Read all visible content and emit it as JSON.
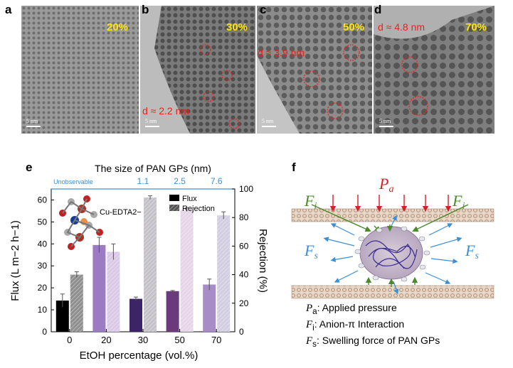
{
  "panels": {
    "a": {
      "letter": "a",
      "percent": "20%"
    },
    "b": {
      "letter": "b",
      "percent": "30%",
      "d_label": "d ≈ 2.2 nm"
    },
    "c": {
      "letter": "c",
      "percent": "50%",
      "d_label": "d ≈ 3.9 nm"
    },
    "d": {
      "letter": "d",
      "percent": "70%",
      "d_label": "d ≈ 4.8 nm"
    },
    "scale_label": "5 nm",
    "e": {
      "letter": "e"
    },
    "f": {
      "letter": "f"
    }
  },
  "chart_data": {
    "type": "bar",
    "top_title": "The size of PAN GPs (nm)",
    "top_ticks": [
      "Unobservable",
      "1.1",
      "2.5",
      "7.6"
    ],
    "categories": [
      "0",
      "20",
      "30",
      "50",
      "70"
    ],
    "xlabel": "EtOH percentage (vol.%)",
    "ylabel_left": "Flux (L m−2 h−1)",
    "ylabel_right": "Rejection (%)",
    "ylim_left": [
      0,
      65
    ],
    "ylim_right": [
      0,
      100
    ],
    "left_ticks": [
      "0",
      "10",
      "20",
      "30",
      "40",
      "50",
      "60"
    ],
    "right_ticks": [
      "0",
      "20",
      "40",
      "60",
      "80",
      "100"
    ],
    "molecule_label": "Cu-EDTA2−",
    "series": [
      {
        "name": "Flux",
        "axis": "left",
        "values": [
          14.2,
          39.5,
          15.0,
          18.5,
          21.5
        ],
        "errors": [
          3.0,
          3.5,
          0.8,
          0.3,
          2.5
        ]
      },
      {
        "name": "Rejection",
        "axis": "right",
        "values": [
          40.0,
          56.0,
          94.0,
          85.5,
          81.5
        ],
        "errors": [
          2.0,
          5.5,
          1.2,
          1.2,
          2.5
        ]
      }
    ],
    "colors": {
      "flux": [
        "#000000",
        "#9b7cc2",
        "#3c2566",
        "#6b3a7c",
        "#a78cc8"
      ],
      "rejection": [
        "#8f8f8f",
        "#d9c8e6",
        "#c5c1c8",
        "#e6d4e8",
        "#d2cde0"
      ]
    },
    "axis_blue": "#3c8fd6"
  },
  "schematic": {
    "Pa": "Pa",
    "Fi_left": "Fi",
    "Fi_right": "Fi",
    "Fs_left": "Fs",
    "Fs_right": "Fs",
    "legend": [
      {
        "sym": "P",
        "sub": "a",
        "text": ": Applied pressure"
      },
      {
        "sym": "F",
        "sub": "i",
        "text": ": Anion-π Interaction"
      },
      {
        "sym": "F",
        "sub": "s",
        "text": ": Swelling force of PAN GPs"
      }
    ]
  }
}
